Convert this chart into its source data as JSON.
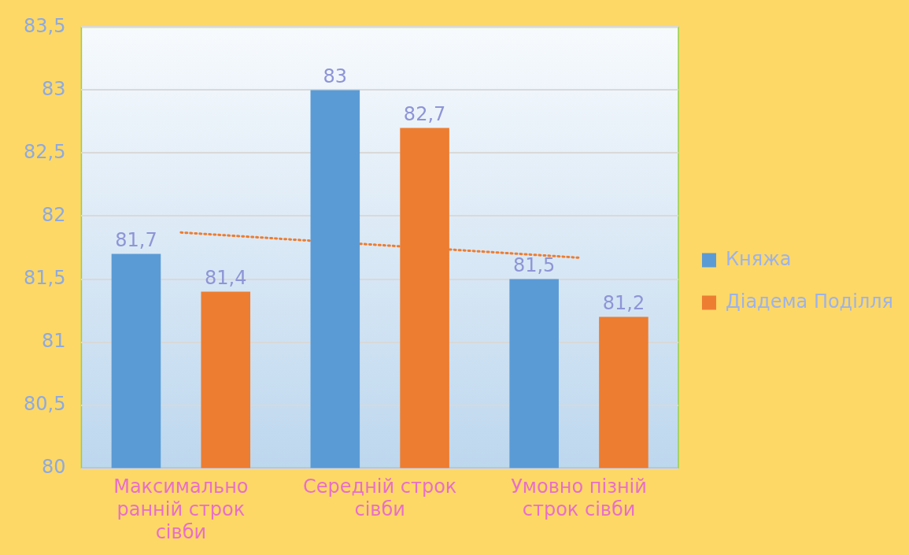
{
  "chart_data": {
    "type": "bar",
    "categories": [
      "Максимально ранній строк сівби",
      "Середній строк сівби",
      "Умовно пізній строк сівби"
    ],
    "series": [
      {
        "name": "Княжа",
        "color": "#5b9bd5",
        "values": [
          81.7,
          83,
          81.5
        ],
        "value_labels": [
          "81,7",
          "83",
          "81,5"
        ]
      },
      {
        "name": "Діадема Поділля",
        "color": "#ed7d31",
        "values": [
          81.4,
          82.7,
          81.2
        ],
        "value_labels": [
          "81,4",
          "82,7",
          "81,2"
        ]
      },
      {
        "type": "line",
        "color": "#ed7d31",
        "values": [
          81.87,
          81.77,
          81.67
        ],
        "line_style": "dotted",
        "marker": "none"
      }
    ],
    "ylim": [
      80,
      83.5
    ],
    "yticks": [
      80,
      {
        "value": 80.5,
        "label": "80,5"
      },
      81,
      {
        "value": 81.5,
        "label": "81,5"
      },
      82,
      {
        "value": 82.5,
        "label": "82,5"
      },
      83,
      {
        "value": 83.5,
        "label": "83,5"
      }
    ],
    "grid": "y",
    "legend": "right"
  }
}
